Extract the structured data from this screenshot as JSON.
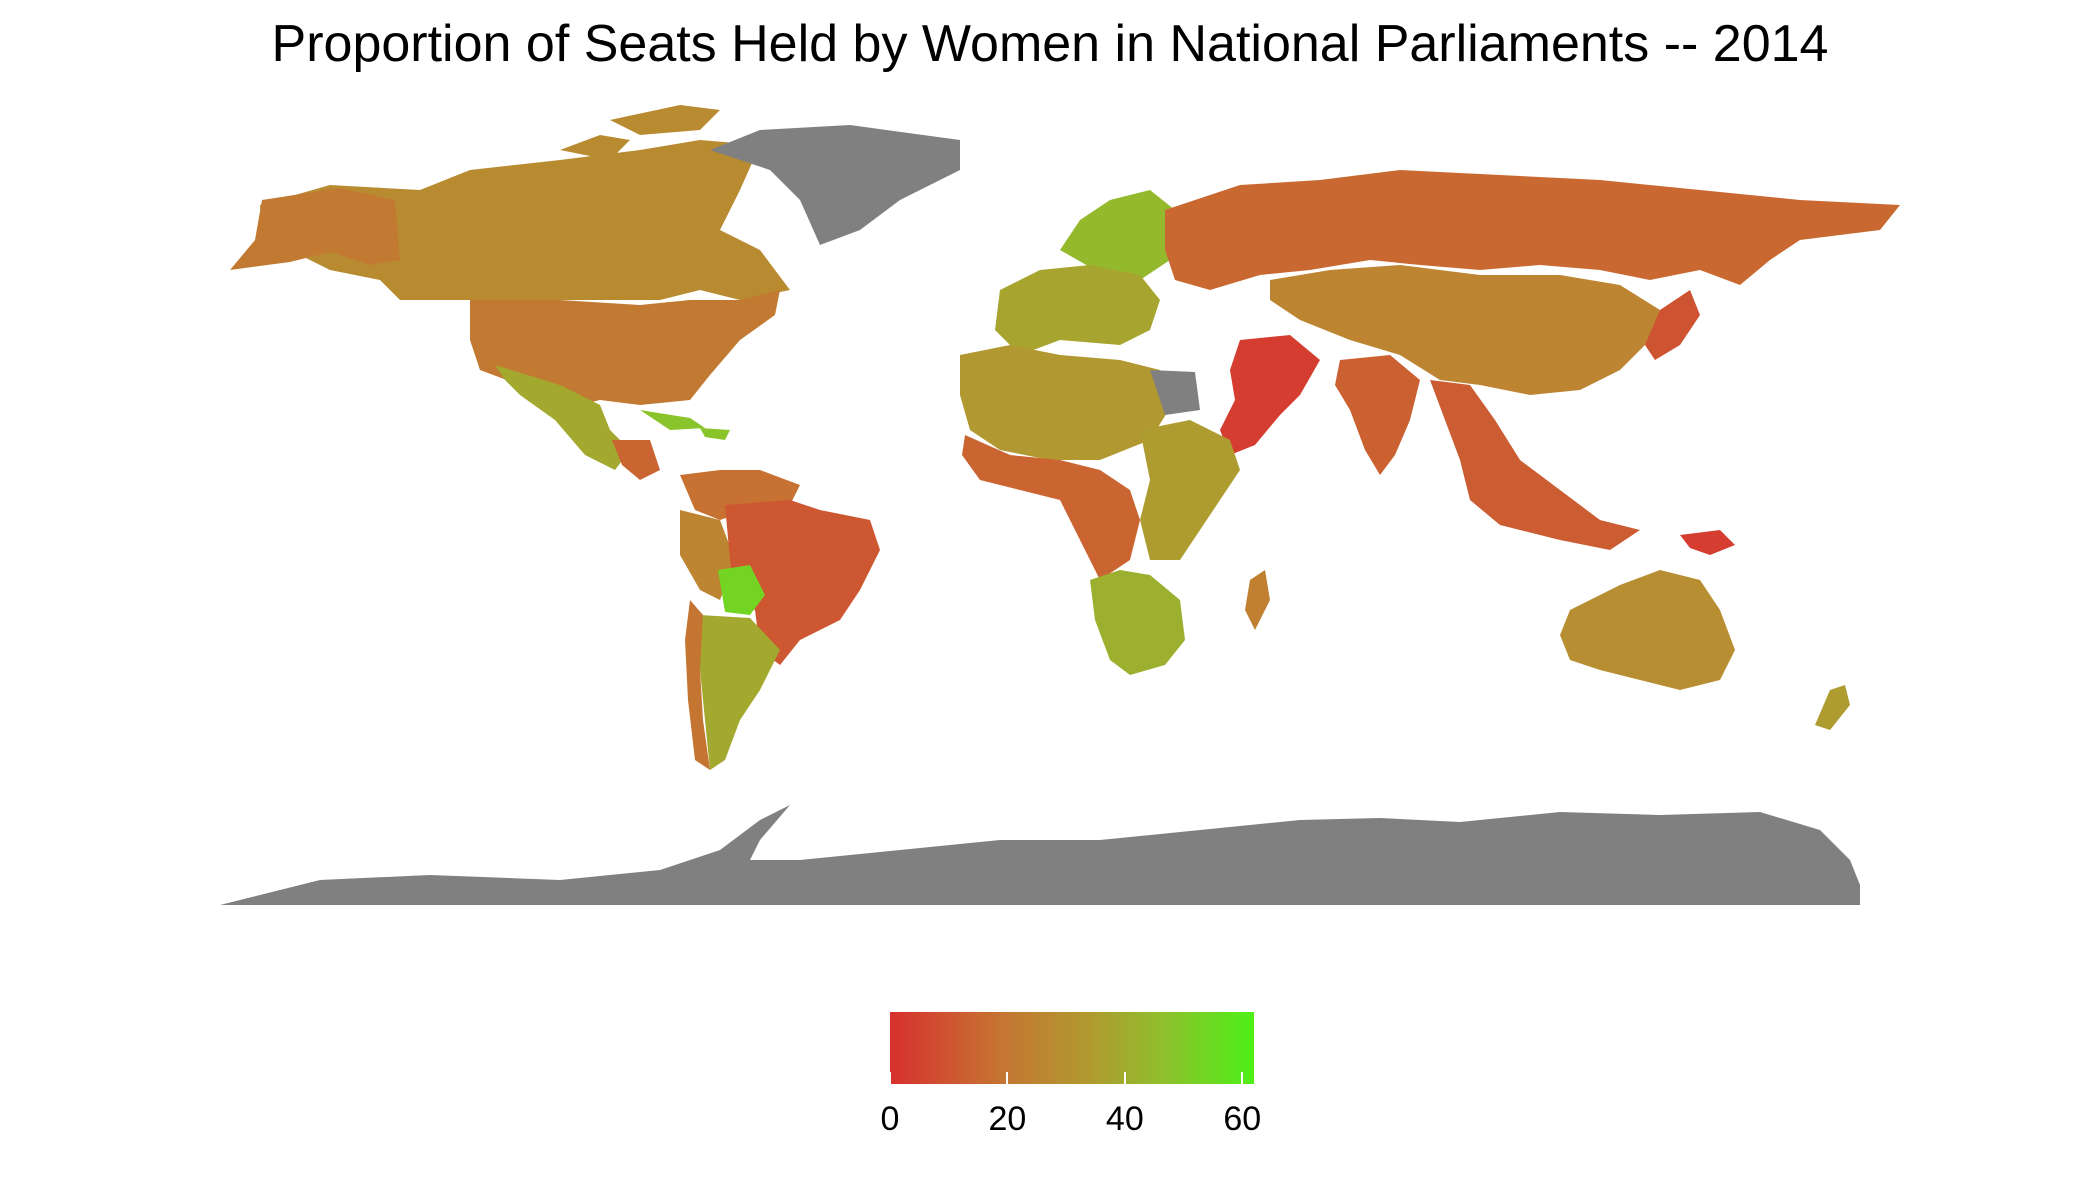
{
  "title": "Proportion of Seats Held by Women in National Parliaments -- 2014",
  "legend": {
    "min": 0,
    "max": 62,
    "ticks": [
      {
        "value": 0,
        "label": "0"
      },
      {
        "value": 20,
        "label": "20"
      },
      {
        "value": 40,
        "label": "40"
      },
      {
        "value": 60,
        "label": "60"
      }
    ],
    "gradient_colors": [
      "#d7302e",
      "#c67432",
      "#b09a30",
      "#8fbf2c",
      "#4ef018"
    ]
  },
  "colors": {
    "no_data": "#808080",
    "low": "#d7302e",
    "mid": "#b09a30",
    "high": "#4ef018"
  },
  "map_regions": [
    {
      "region": "Canada",
      "value": 25
    },
    {
      "region": "Alaska / USA",
      "value": 18
    },
    {
      "region": "United States",
      "value": 18
    },
    {
      "region": "Greenland",
      "value": null
    },
    {
      "region": "Mexico",
      "value": 37
    },
    {
      "region": "Central America",
      "value": 12
    },
    {
      "region": "Caribbean",
      "value": 48
    },
    {
      "region": "Colombia / Venezuela",
      "value": 15
    },
    {
      "region": "Peru / Ecuador",
      "value": 22
    },
    {
      "region": "Brazil",
      "value": 9
    },
    {
      "region": "Bolivia",
      "value": 53
    },
    {
      "region": "Argentina",
      "value": 37
    },
    {
      "region": "Chile",
      "value": 16
    },
    {
      "region": "Scandinavia",
      "value": 44
    },
    {
      "region": "Western Europe",
      "value": 35
    },
    {
      "region": "Russia",
      "value": 13
    },
    {
      "region": "Central Asia / China",
      "value": 22
    },
    {
      "region": "Iran / Arabia",
      "value": 3
    },
    {
      "region": "India",
      "value": 11
    },
    {
      "region": "Southeast Asia",
      "value": 10
    },
    {
      "region": "Japan",
      "value": 8
    },
    {
      "region": "North Africa",
      "value": 30
    },
    {
      "region": "Egypt",
      "value": null
    },
    {
      "region": "West / Central Africa",
      "value": 12
    },
    {
      "region": "East Africa",
      "value": 32
    },
    {
      "region": "Southern Africa",
      "value": 40
    },
    {
      "region": "Madagascar",
      "value": 20
    },
    {
      "region": "Australia",
      "value": 26
    },
    {
      "region": "New Zealand",
      "value": 32
    },
    {
      "region": "Papua New Guinea",
      "value": 3
    },
    {
      "region": "Antarctica",
      "value": null
    }
  ]
}
